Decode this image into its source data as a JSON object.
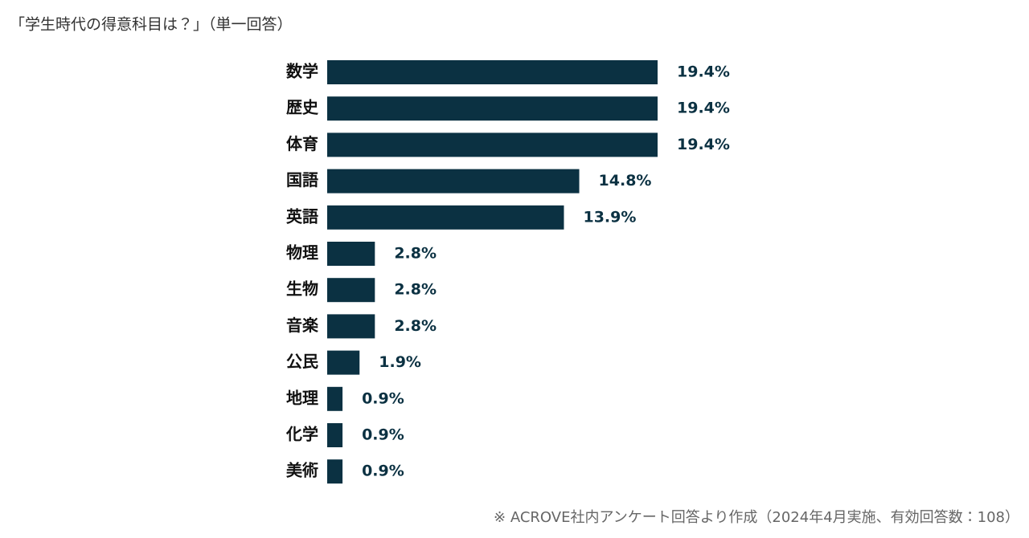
{
  "chart_data": {
    "type": "bar",
    "orientation": "horizontal",
    "title": "「学生時代の得意科目は？」（単一回答）",
    "categories": [
      "数学",
      "歴史",
      "体育",
      "国語",
      "英語",
      "物理",
      "生物",
      "音楽",
      "公民",
      "地理",
      "化学",
      "美術"
    ],
    "values": [
      19.4,
      19.4,
      19.4,
      14.8,
      13.9,
      2.8,
      2.8,
      2.8,
      1.9,
      0.9,
      0.9,
      0.9
    ],
    "value_labels": [
      "19.4%",
      "19.4%",
      "19.4%",
      "14.8%",
      "13.9%",
      "2.8%",
      "2.8%",
      "2.8%",
      "1.9%",
      "0.9%",
      "0.9%",
      "0.9%"
    ],
    "color": "#0b3142",
    "note": "※ ACROVE社内アンケート回答より作成（2024年4月実施、有効回答数：108）"
  }
}
